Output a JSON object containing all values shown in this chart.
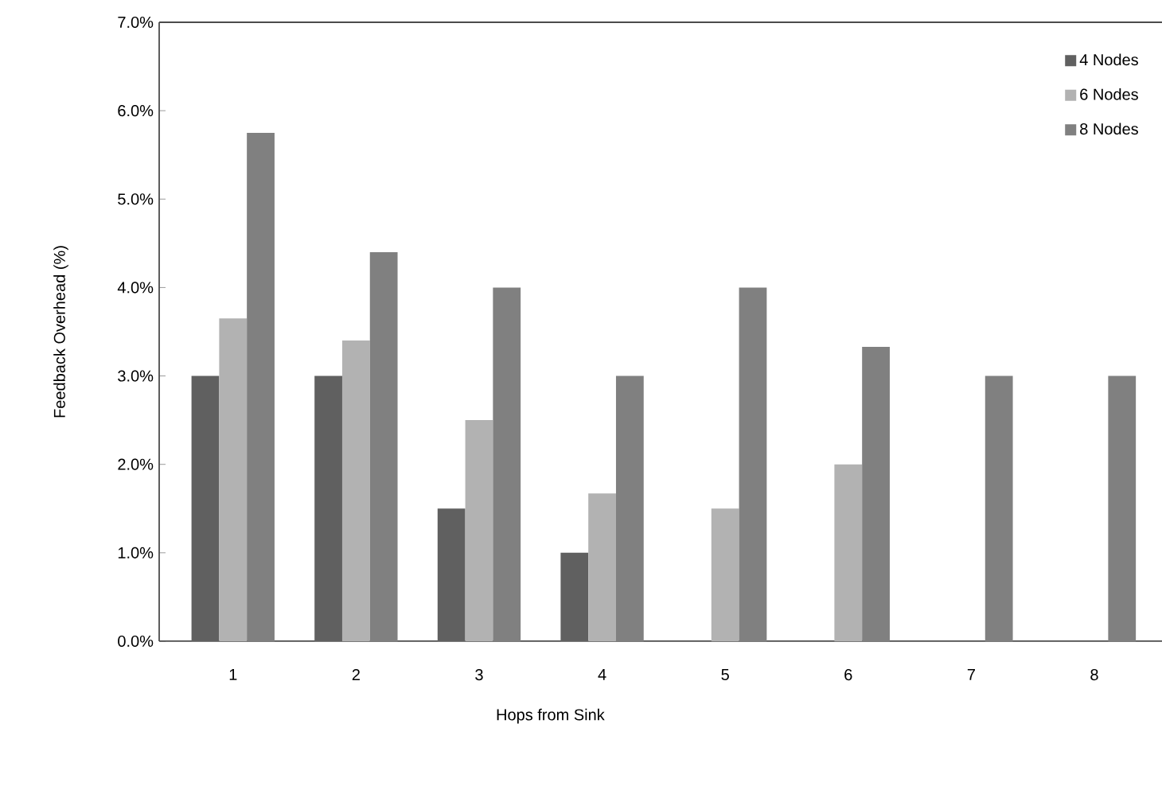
{
  "chart_data": {
    "type": "bar",
    "xlabel": "Hops from Sink",
    "ylabel": "Feedback Overhead (%)",
    "categories": [
      "1",
      "2",
      "3",
      "4",
      "5",
      "6",
      "7",
      "8"
    ],
    "series": [
      {
        "name": "4 Nodes",
        "color": "#606060",
        "values": [
          3.0,
          3.0,
          1.5,
          1.0,
          0,
          0,
          0,
          0
        ]
      },
      {
        "name": "6 Nodes",
        "color": "#b2b2b2",
        "values": [
          3.65,
          3.4,
          2.5,
          1.67,
          1.5,
          2.0,
          0,
          0
        ]
      },
      {
        "name": "8 Nodes",
        "color": "#808080",
        "values": [
          5.75,
          4.4,
          4.0,
          3.0,
          4.0,
          3.33,
          3.0,
          3.0
        ]
      }
    ],
    "ylim": [
      0,
      7
    ],
    "yticks": [
      {
        "value": 0,
        "label": "0.0%"
      },
      {
        "value": 1,
        "label": "1.0%"
      },
      {
        "value": 2,
        "label": "2.0%"
      },
      {
        "value": 3,
        "label": "3.0%"
      },
      {
        "value": 4,
        "label": "4.0%"
      },
      {
        "value": 5,
        "label": "5.0%"
      },
      {
        "value": 6,
        "label": "6.0%"
      },
      {
        "value": 7,
        "label": "7.0%"
      }
    ],
    "grid": false,
    "legend": "top right"
  }
}
